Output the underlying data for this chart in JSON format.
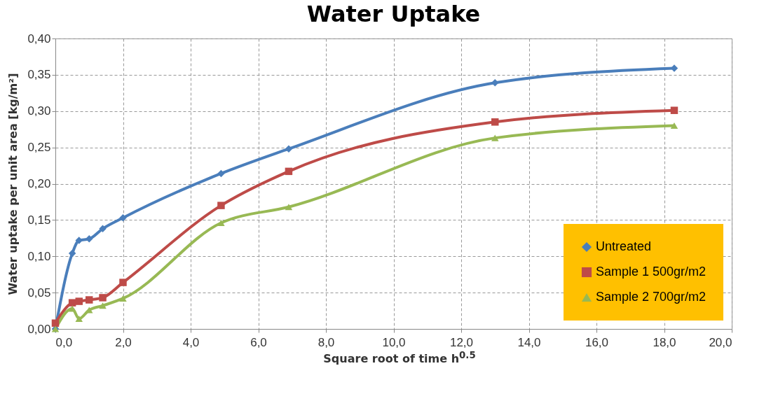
{
  "chart_data": {
    "type": "line",
    "title": "Water Uptake",
    "xlabel": "Square root of time h$^{0.5}$",
    "ylabel": "Water uptake per unit area [kg/m²]",
    "x": [
      0,
      0.5,
      0.7,
      1.0,
      1.4,
      2.0,
      4.9,
      6.9,
      13.0,
      18.3
    ],
    "series": [
      {
        "name": "Untreated",
        "color": "#4a7ebb",
        "marker": "diamond",
        "values": [
          0.0,
          0.104,
          0.122,
          0.124,
          0.138,
          0.153,
          0.214,
          0.248,
          0.339,
          0.359
        ]
      },
      {
        "name": "Sample 1 500gr/m2",
        "color": "#be4b48",
        "marker": "square",
        "values": [
          0.008,
          0.036,
          0.038,
          0.04,
          0.043,
          0.064,
          0.17,
          0.217,
          0.285,
          0.301
        ]
      },
      {
        "name": "Sample 2 700gr/m2",
        "color": "#98b954",
        "marker": "triangle",
        "values": [
          0.0,
          0.028,
          0.014,
          0.026,
          0.032,
          0.042,
          0.146,
          0.168,
          0.263,
          0.28
        ]
      }
    ],
    "xlim": [
      0,
      20
    ],
    "xticks": [
      {
        "value": 0,
        "label": "0,0"
      },
      {
        "value": 2,
        "label": "2,0"
      },
      {
        "value": 4,
        "label": "4,0"
      },
      {
        "value": 6,
        "label": "6,0"
      },
      {
        "value": 8,
        "label": "8,0"
      },
      {
        "value": 10,
        "label": "10,0"
      },
      {
        "value": 12,
        "label": "12,0"
      },
      {
        "value": 14,
        "label": "14,0"
      },
      {
        "value": 16,
        "label": "16,0"
      },
      {
        "value": 18,
        "label": "18,0"
      },
      {
        "value": 20,
        "label": "20,0"
      }
    ],
    "ylim": [
      0,
      0.4
    ],
    "yticks": [
      {
        "value": 0,
        "label": "0,00"
      },
      {
        "value": 0.05,
        "label": "0,05"
      },
      {
        "value": 0.1,
        "label": "0,10"
      },
      {
        "value": 0.15,
        "label": "0,15"
      },
      {
        "value": 0.2,
        "label": "0,20"
      },
      {
        "value": 0.25,
        "label": "0,25"
      },
      {
        "value": 0.3,
        "label": "0,30"
      },
      {
        "value": 0.35,
        "label": "0,35"
      },
      {
        "value": 0.4,
        "label": "0,40"
      }
    ],
    "grid": true,
    "legend": "bottom right",
    "line_style": "solid"
  }
}
